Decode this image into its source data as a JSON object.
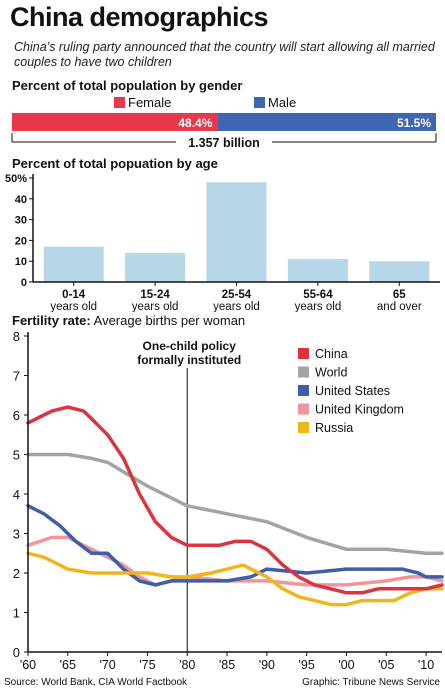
{
  "header": {
    "title": "China demographics",
    "subtitle": "China’s ruling party announced that the country will start allowing all married couples to have two children"
  },
  "colors": {
    "female": "#e8394a",
    "male": "#3f66b3",
    "age_bar": "#b7d7e9",
    "china": "#d9343f",
    "world": "#a3a3a3",
    "united_states": "#3c5fa8",
    "united_kingdom": "#f0969b",
    "russia": "#f1b51c"
  },
  "gender": {
    "heading": "Percent of total population by gender",
    "total_label": "1.357 billion"
  },
  "age": {
    "heading": "Percent of total popuation by age"
  },
  "fertility": {
    "heading_bold": "Fertility rate:",
    "heading_normal": " Average births per woman",
    "annotation_line1": "One-child policy",
    "annotation_line2": "formally instituted"
  },
  "footer": {
    "source": "Source: World Bank, CIA World Factbook",
    "credit": "Graphic: Tribune News Service"
  },
  "chart_data": [
    {
      "type": "bar",
      "orientation": "horizontal-stacked",
      "series": [
        {
          "name": "Female",
          "value": 48.4,
          "label": "48.4%"
        },
        {
          "name": "Male",
          "value": 51.5,
          "label": "51.5%"
        }
      ],
      "legend_position": "top"
    },
    {
      "type": "bar",
      "categories": [
        "0-14",
        "15-24",
        "25-54",
        "55-64",
        "65"
      ],
      "category_sublabels": [
        "years old",
        "years old",
        "years old",
        "years old",
        "and over"
      ],
      "values": [
        17,
        14,
        48,
        11,
        10
      ],
      "ylim": [
        0,
        50
      ],
      "yticks": [
        0,
        10,
        20,
        30,
        40,
        50
      ],
      "ytick_labels": [
        "0",
        "10",
        "20",
        "30",
        "40",
        "50%"
      ],
      "grid": false
    },
    {
      "type": "line",
      "xlim": [
        1960,
        2012
      ],
      "ylim": [
        0,
        8
      ],
      "xticks": [
        1960,
        1965,
        1970,
        1975,
        1980,
        1985,
        1990,
        1995,
        2000,
        2005,
        2010
      ],
      "xtick_labels": [
        "'60",
        "'65",
        "'70",
        "'75",
        "'80",
        "'85",
        "'90",
        "'95",
        "'00",
        "'05",
        "'10"
      ],
      "yticks": [
        0,
        1,
        2,
        3,
        4,
        5,
        6,
        7,
        8
      ],
      "grid": false,
      "legend_position": "top-right",
      "annotation": {
        "x": 1980,
        "text": [
          "One-child policy",
          "formally instituted"
        ]
      },
      "series": [
        {
          "name": "China",
          "x": [
            1960,
            1962,
            1963,
            1965,
            1967,
            1968,
            1970,
            1972,
            1974,
            1976,
            1978,
            1980,
            1982,
            1984,
            1986,
            1988,
            1990,
            1992,
            1994,
            1996,
            1998,
            2000,
            2002,
            2004,
            2006,
            2008,
            2010,
            2012
          ],
          "y": [
            5.8,
            6.0,
            6.1,
            6.2,
            6.1,
            5.9,
            5.5,
            4.9,
            4.0,
            3.3,
            2.9,
            2.7,
            2.7,
            2.7,
            2.8,
            2.8,
            2.6,
            2.2,
            1.9,
            1.7,
            1.6,
            1.5,
            1.5,
            1.6,
            1.6,
            1.6,
            1.6,
            1.7
          ]
        },
        {
          "name": "World",
          "x": [
            1960,
            1965,
            1968,
            1970,
            1975,
            1980,
            1985,
            1990,
            1995,
            2000,
            2005,
            2010,
            2012
          ],
          "y": [
            5.0,
            5.0,
            4.9,
            4.8,
            4.2,
            3.7,
            3.5,
            3.3,
            2.9,
            2.6,
            2.6,
            2.5,
            2.5
          ]
        },
        {
          "name": "United States",
          "x": [
            1960,
            1962,
            1964,
            1966,
            1968,
            1970,
            1972,
            1974,
            1976,
            1978,
            1980,
            1985,
            1988,
            1990,
            1995,
            2000,
            2005,
            2007,
            2009,
            2010,
            2012
          ],
          "y": [
            3.7,
            3.5,
            3.2,
            2.8,
            2.5,
            2.5,
            2.1,
            1.8,
            1.7,
            1.8,
            1.8,
            1.8,
            1.9,
            2.1,
            2.0,
            2.1,
            2.1,
            2.1,
            2.0,
            1.9,
            1.9
          ]
        },
        {
          "name": "United Kingdom",
          "x": [
            1960,
            1963,
            1965,
            1968,
            1970,
            1972,
            1974,
            1976,
            1978,
            1980,
            1985,
            1990,
            1995,
            2000,
            2005,
            2008,
            2010,
            2012
          ],
          "y": [
            2.7,
            2.9,
            2.9,
            2.6,
            2.4,
            2.2,
            1.9,
            1.7,
            1.8,
            1.9,
            1.8,
            1.8,
            1.7,
            1.7,
            1.8,
            1.9,
            1.9,
            1.8
          ]
        },
        {
          "name": "Russia",
          "x": [
            1960,
            1962,
            1965,
            1968,
            1970,
            1975,
            1978,
            1980,
            1983,
            1985,
            1987,
            1990,
            1992,
            1994,
            1996,
            1998,
            2000,
            2002,
            2004,
            2006,
            2008,
            2010,
            2012
          ],
          "y": [
            2.5,
            2.4,
            2.1,
            2.0,
            2.0,
            2.0,
            1.9,
            1.9,
            2.0,
            2.1,
            2.2,
            1.9,
            1.6,
            1.4,
            1.3,
            1.2,
            1.2,
            1.3,
            1.3,
            1.3,
            1.5,
            1.6,
            1.6
          ]
        }
      ]
    }
  ]
}
